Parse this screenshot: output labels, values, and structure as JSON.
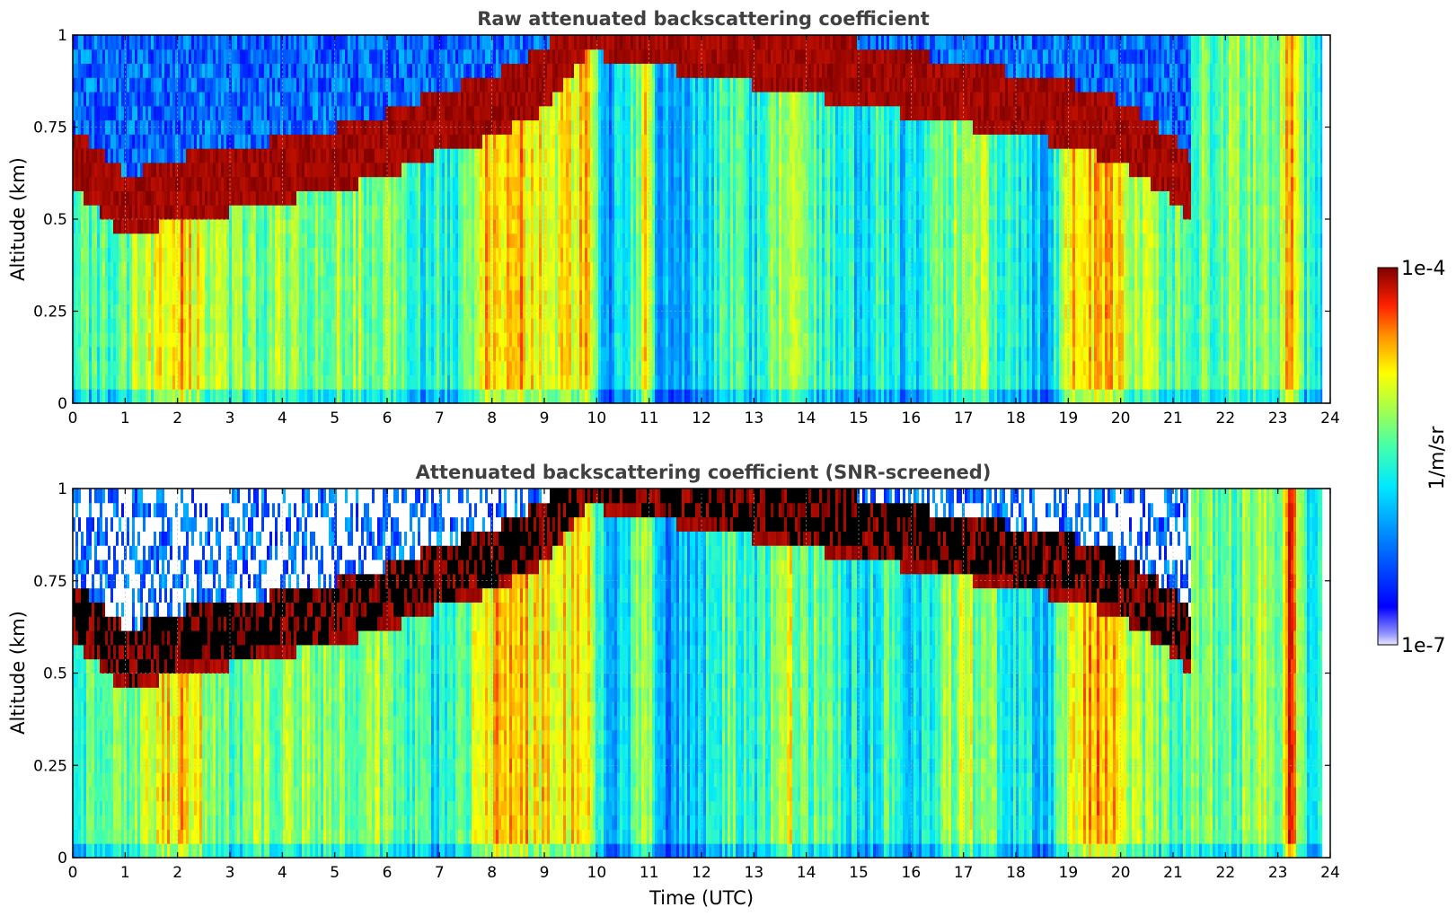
{
  "chart_data": [
    {
      "type": "heatmap",
      "title": "Raw attenuated backscattering coefficient",
      "xlabel": "",
      "ylabel": "Altitude (km)",
      "xlim": [
        0,
        24
      ],
      "ylim": [
        0,
        1
      ],
      "xticks": [
        "0",
        "1",
        "2",
        "3",
        "4",
        "5",
        "6",
        "7",
        "8",
        "9",
        "10",
        "11",
        "12",
        "13",
        "14",
        "15",
        "16",
        "17",
        "18",
        "19",
        "20",
        "21",
        "22",
        "23",
        "24"
      ],
      "yticks": [
        "0",
        "0.25",
        "0.5",
        "0.75",
        "1"
      ],
      "grid": true,
      "screened": false,
      "data_end_hour": 23.85,
      "layer_top_km": [
        {
          "x": 0,
          "y": 0.58
        },
        {
          "x": 1,
          "y": 0.45
        },
        {
          "x": 2,
          "y": 0.5
        },
        {
          "x": 3,
          "y": 0.52
        },
        {
          "x": 4,
          "y": 0.55
        },
        {
          "x": 5,
          "y": 0.58
        },
        {
          "x": 6,
          "y": 0.62
        },
        {
          "x": 7,
          "y": 0.68
        },
        {
          "x": 8,
          "y": 0.72
        },
        {
          "x": 9,
          "y": 0.8
        },
        {
          "x": 9.8,
          "y": 0.95
        },
        {
          "x": 19,
          "y": 0.7
        },
        {
          "x": 20,
          "y": 0.65
        },
        {
          "x": 21,
          "y": 0.55
        },
        {
          "x": 21.3,
          "y": 0.5
        }
      ]
    },
    {
      "type": "heatmap",
      "title": "Attenuated backscattering coefficient (SNR-screened)",
      "xlabel": "Time (UTC)",
      "ylabel": "Altitude (km)",
      "xlim": [
        0,
        24
      ],
      "ylim": [
        0,
        1
      ],
      "xticks": [
        "0",
        "1",
        "2",
        "3",
        "4",
        "5",
        "6",
        "7",
        "8",
        "9",
        "10",
        "11",
        "12",
        "13",
        "14",
        "15",
        "16",
        "17",
        "18",
        "19",
        "20",
        "21",
        "22",
        "23",
        "24"
      ],
      "yticks": [
        "0",
        "0.25",
        "0.5",
        "0.75",
        "1"
      ],
      "grid": true,
      "screened": true,
      "data_end_hour": 23.85
    }
  ],
  "colorbar": {
    "min_label": "1e-7",
    "max_label": "1e-4",
    "label": "1/m/sr",
    "scale": "log",
    "colormap": "jet"
  }
}
